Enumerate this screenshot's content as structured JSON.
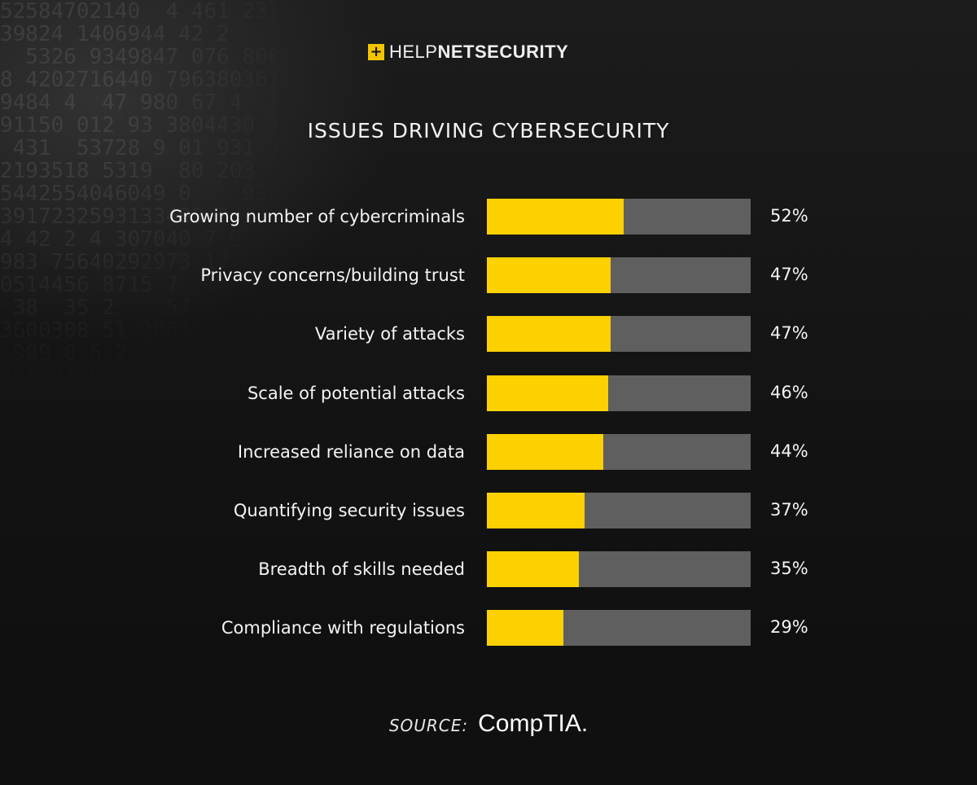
{
  "logo": {
    "icon": "+",
    "text_light": "HELP",
    "text_bold": "NETSECURITY"
  },
  "source": {
    "label": "SOURCE:",
    "brand": "CompTIA."
  },
  "chart_data": {
    "type": "bar",
    "orientation": "horizontal",
    "title": "ISSUES DRIVING CYBERSECURITY",
    "categories": [
      "Growing number of cybercriminals",
      "Privacy concerns/building trust",
      "Variety of attacks",
      "Scale of potential attacks",
      "Increased reliance on data",
      "Quantifying security issues",
      "Breadth of skills needed",
      "Compliance with regulations"
    ],
    "values": [
      52,
      47,
      47,
      46,
      44,
      37,
      35,
      29
    ],
    "value_labels": [
      "52%",
      "47%",
      "47%",
      "46%",
      "44%",
      "37%",
      "35%",
      "29%"
    ],
    "xlim": [
      0,
      100
    ],
    "unit": "%",
    "grid": false,
    "colors": {
      "bar": "#fdd000",
      "track": "#5f5f5f"
    }
  }
}
